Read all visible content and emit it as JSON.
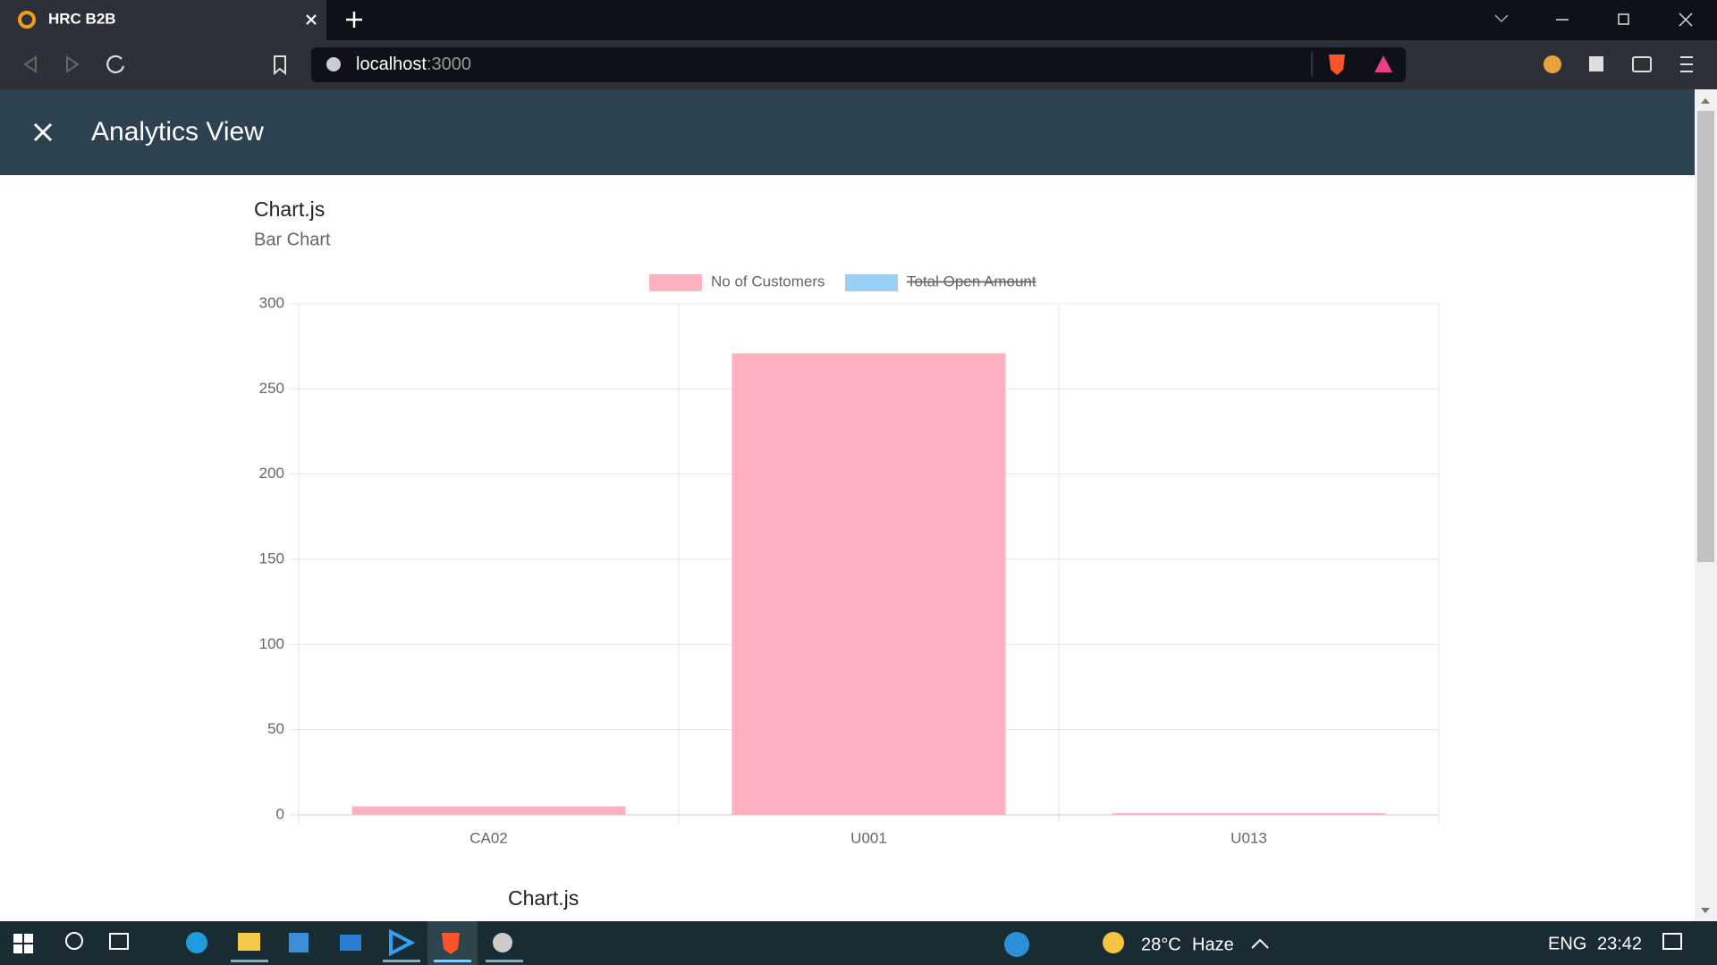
{
  "browser": {
    "tab_title": "HRC B2B",
    "url_host": "localhost",
    "url_port": ":3000"
  },
  "header": {
    "title": "Analytics View"
  },
  "chart_data": {
    "type": "bar",
    "title": "Chart.js",
    "subtitle": "Bar Chart",
    "categories": [
      "CA02",
      "U001",
      "U013"
    ],
    "series": [
      {
        "name": "No of Customers",
        "color": "#ffb1c1",
        "values": [
          5,
          271,
          1
        ]
      },
      {
        "name": "Total Open Amount",
        "color": "#9ad0f5",
        "hidden": true
      }
    ],
    "ylim": [
      0,
      300
    ],
    "yticks": [
      0,
      50,
      100,
      150,
      200,
      250,
      300
    ],
    "grid": true,
    "legend": "top"
  },
  "next_chart": {
    "title": "Chart.js"
  },
  "taskbar": {
    "temperature": "28°C",
    "weather": "Haze",
    "language": "ENG",
    "time": "23:42"
  }
}
